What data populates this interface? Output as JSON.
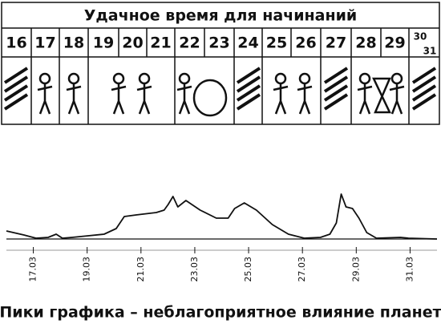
{
  "header": {
    "title": "Удачное время для начинаний",
    "days": [
      "16",
      "17",
      "18",
      "19",
      "20",
      "21",
      "22",
      "23",
      "24",
      "25",
      "26",
      "27",
      "28",
      "29",
      "30",
      "31"
    ]
  },
  "chart_data": {
    "type": "line",
    "x": [
      16.0,
      16.65,
      17.1,
      17.55,
      17.85,
      18.08,
      18.44,
      19.04,
      19.63,
      20.08,
      20.38,
      20.82,
      21.57,
      21.86,
      22.01,
      22.19,
      22.37,
      22.67,
      23.2,
      23.8,
      24.24,
      24.48,
      24.84,
      25.29,
      25.88,
      26.48,
      27.07,
      27.67,
      28.02,
      28.26,
      28.44,
      28.62,
      28.86,
      29.1,
      29.39,
      29.75,
      30.64,
      30.94,
      32.0
    ],
    "series": [
      {
        "color": "#111111",
        "values": [
          10,
          5,
          1,
          2,
          6,
          1,
          2,
          4,
          6,
          13,
          28,
          30,
          33,
          36,
          43,
          53,
          40,
          48,
          36,
          26,
          26,
          38,
          45,
          36,
          18,
          6,
          1,
          2,
          6,
          20,
          56,
          40,
          38,
          26,
          8,
          1,
          2,
          1,
          0
        ]
      }
    ],
    "xlim": [
      16,
      32
    ],
    "ylim": [
      0,
      70
    ],
    "xticks": [
      {
        "value": 17,
        "label": "17.03"
      },
      {
        "value": 19,
        "label": "19.03"
      },
      {
        "value": 21,
        "label": "21.03"
      },
      {
        "value": 23,
        "label": "23.03"
      },
      {
        "value": 25,
        "label": "25.03"
      },
      {
        "value": 27,
        "label": "27.03"
      },
      {
        "value": 29,
        "label": "29.03"
      },
      {
        "value": 31,
        "label": "31.03"
      }
    ],
    "caption": "Пики графика – неблагоприятное влияние планет"
  }
}
